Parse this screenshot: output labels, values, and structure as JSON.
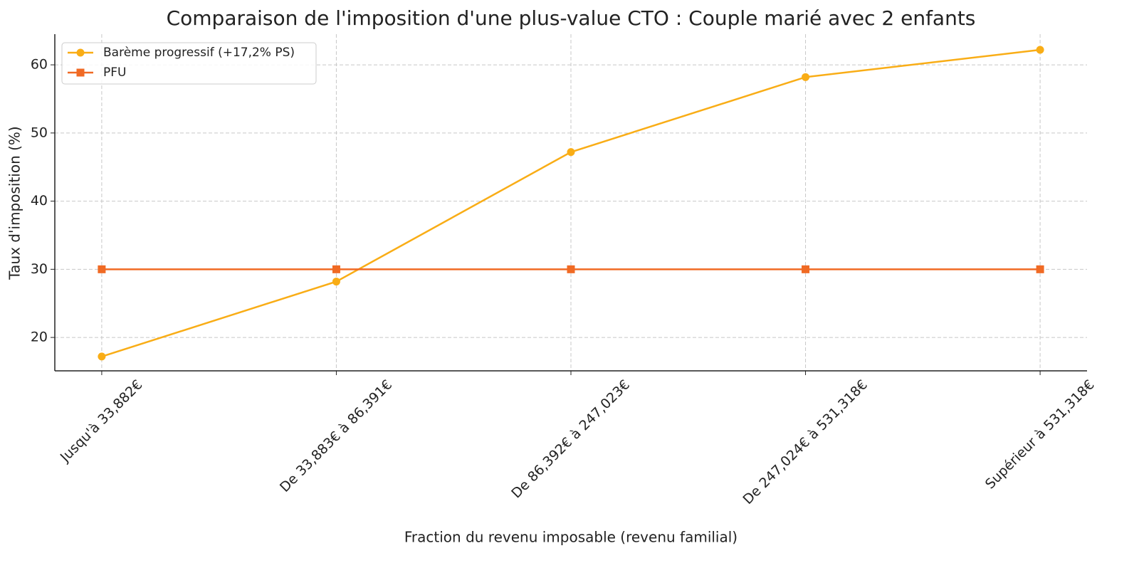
{
  "chart_data": {
    "type": "line",
    "title": "Comparaison de l'imposition d'une plus-value CTO : Couple marié avec 2 enfants",
    "x_label": "Fraction du revenu imposable (revenu familial)",
    "y_label": "Taux d'imposition (%)",
    "categories": [
      "Jusqu'à 33,882€",
      "De 33,883€ à 86,391€",
      "De 86,392€ à 247,023€",
      "De 247,024€ à 531,318€",
      "Supérieur à 531,318€"
    ],
    "series": [
      {
        "name": "Barème progressif (+17,2% PS)",
        "color": "#f9ad16",
        "marker": "circle",
        "values": [
          17.2,
          28.2,
          47.2,
          58.2,
          62.2
        ]
      },
      {
        "name": "PFU",
        "color": "#f06a24",
        "marker": "square",
        "values": [
          30,
          30,
          30,
          30,
          30
        ]
      }
    ],
    "ylim": [
      15.1,
      64.5
    ],
    "yticks": [
      20,
      30,
      40,
      50,
      60
    ],
    "grid": true,
    "legend": "upper left"
  }
}
